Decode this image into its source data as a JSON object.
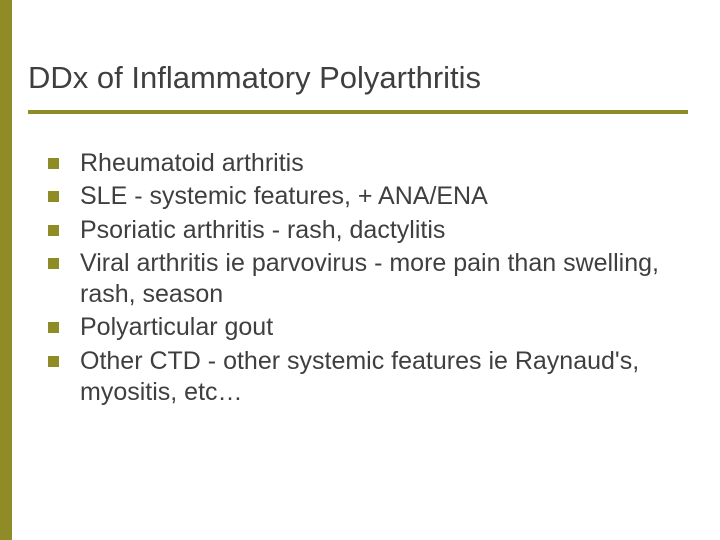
{
  "colors": {
    "accent": "#8f8b26",
    "text": "#3f3f3f",
    "background": "#ffffff"
  },
  "title": "DDx of Inflammatory Polyarthritis",
  "title_fontsize": 31,
  "rule_height": 4,
  "bullets": [
    "Rheumatoid arthritis",
    "SLE - systemic features, + ANA/ENA",
    "Psoriatic arthritis - rash, dactylitis",
    "Viral arthritis ie parvovirus - more pain than swelling, rash, season",
    "Polyarticular gout",
    "Other CTD - other systemic features ie Raynaud's, myositis, etc…"
  ],
  "bullet_fontsize": 25,
  "bullet_size": 11,
  "leftbar_width": 12
}
